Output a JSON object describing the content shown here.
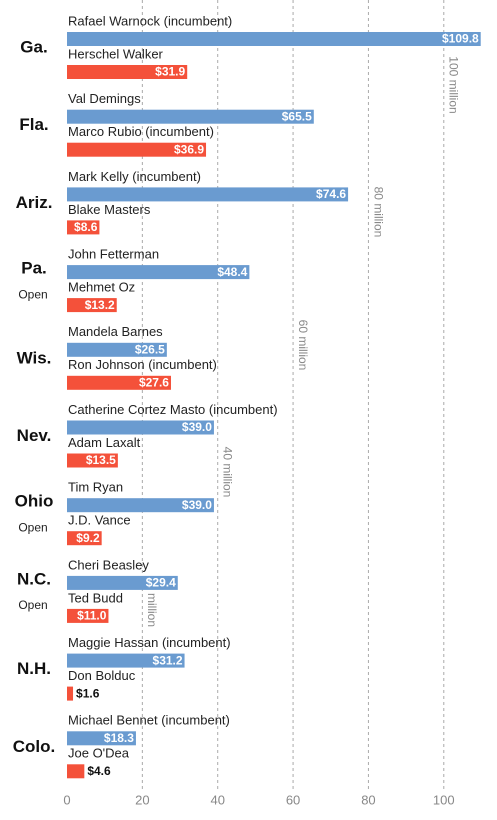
{
  "chart_data": {
    "type": "bar",
    "categories": [
      "Ga.",
      "Fla.",
      "Ariz.",
      "Pa.",
      "Wis.",
      "Nev.",
      "Ohio",
      "N.C.",
      "N.H.",
      "Colo."
    ],
    "category_notes": [
      null,
      null,
      null,
      "Open",
      null,
      null,
      "Open",
      "Open",
      null,
      null
    ],
    "series": [
      {
        "color": "#6a9bd0",
        "labels": [
          "Rafael Warnock (incumbent)",
          "Val Demings",
          "Mark Kelly (incumbent)",
          "John Fetterman",
          "Mandela Barnes",
          "Catherine Cortez Masto (incumbent)",
          "Tim Ryan",
          "Cheri Beasley",
          "Maggie Hassan (incumbent)",
          "Michael Bennet (incumbent)"
        ],
        "values": [
          109.8,
          65.5,
          74.6,
          48.4,
          26.5,
          39.0,
          39.0,
          29.4,
          31.2,
          18.3
        ],
        "value_labels": [
          "$109.8",
          "$65.5",
          "$74.6",
          "$48.4",
          "$26.5",
          "$39.0",
          "$39.0",
          "$29.4",
          "$31.2",
          "$18.3"
        ]
      },
      {
        "color": "#f4513a",
        "labels": [
          "Herschel Walker",
          "Marco Rubio (incumbent)",
          "Blake Masters",
          "Mehmet Oz",
          "Ron Johnson (incumbent)",
          "Adam Laxalt",
          "J.D. Vance",
          "Ted Budd",
          "Don Bolduc",
          "Joe O'Dea"
        ],
        "values": [
          31.9,
          36.9,
          8.6,
          13.2,
          27.6,
          13.5,
          9.2,
          11.0,
          1.6,
          4.6
        ],
        "value_labels": [
          "$31.9",
          "$36.9",
          "$8.6",
          "$13.2",
          "$27.6",
          "$13.5",
          "$9.2",
          "$11.0",
          "$1.6",
          "$4.6"
        ]
      }
    ],
    "xlim": [
      0,
      112
    ],
    "xticks": [
      0,
      20,
      40,
      60,
      80,
      100
    ],
    "grid_annotations": [
      {
        "value": 20,
        "label": "million"
      },
      {
        "value": 40,
        "label": "40 million"
      },
      {
        "value": 60,
        "label": "60 million"
      },
      {
        "value": 80,
        "label": "80 million"
      },
      {
        "value": 100,
        "label": "100 million"
      }
    ],
    "grid": true
  }
}
